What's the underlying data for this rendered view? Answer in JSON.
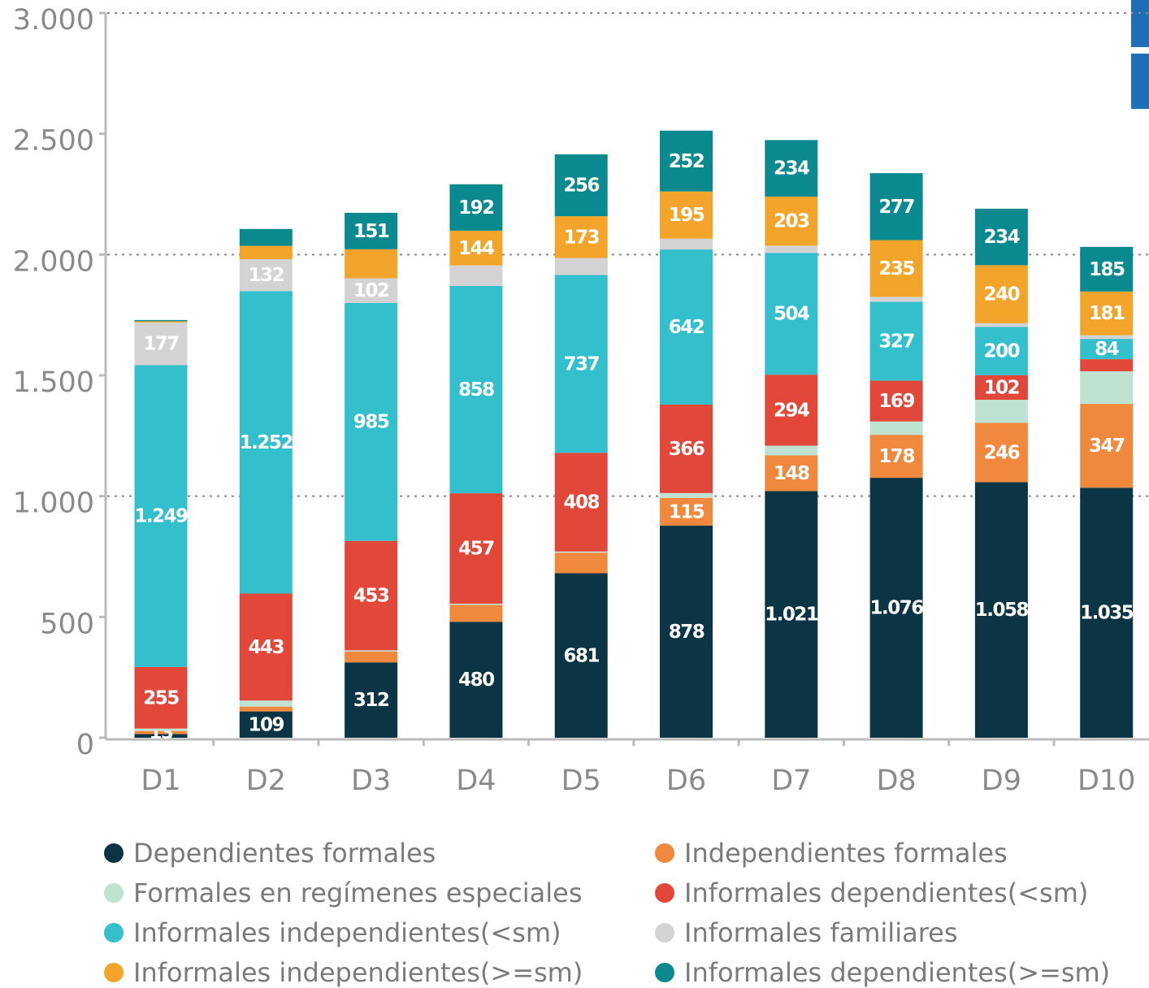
{
  "chart_data": {
    "type": "stacked_bar",
    "categories": [
      "D1",
      "D2",
      "D3",
      "D4",
      "D5",
      "D6",
      "D7",
      "D8",
      "D9",
      "D10"
    ],
    "ylim": [
      0,
      3000
    ],
    "yticks": [
      0,
      500,
      {
        "value": 1000,
        "label": "1.000"
      },
      {
        "value": 1500,
        "label": "1.500"
      },
      {
        "value": 2000,
        "label": "2.000"
      },
      {
        "value": 2500,
        "label": "2.500"
      },
      {
        "value": 3000,
        "label": "3.000"
      }
    ],
    "gridlines": [
      1000,
      2000,
      3000
    ],
    "series": [
      {
        "name": "Dependientes formales",
        "color": "#0b3545",
        "values": [
          15,
          109,
          312,
          480,
          681,
          878,
          1021,
          1076,
          1058,
          1035
        ],
        "value_labels": [
          null,
          "109",
          "312",
          "480",
          "681",
          "878",
          "1.021",
          "1.076",
          "1.058",
          "1.035"
        ]
      },
      {
        "name": "Independientes formales",
        "color": "#f0883e",
        "values": [
          13,
          20,
          45,
          70,
          85,
          115,
          148,
          178,
          246,
          347
        ],
        "value_labels": [
          "13",
          null,
          null,
          null,
          null,
          "115",
          "148",
          "178",
          "246",
          "347"
        ]
      },
      {
        "name": "Formales en regímenes especiales",
        "color": "#bfe3d3",
        "values": [
          10,
          25,
          5,
          5,
          5,
          20,
          40,
          55,
          95,
          135
        ],
        "value_labels": [
          null,
          null,
          null,
          null,
          null,
          null,
          null,
          null,
          null,
          null
        ]
      },
      {
        "name": "Informales dependientes(<sm)",
        "color": "#e2483a",
        "values": [
          255,
          443,
          453,
          457,
          408,
          366,
          294,
          169,
          102,
          50
        ],
        "value_labels": [
          "255",
          "443",
          "453",
          "457",
          "408",
          "366",
          "294",
          "169",
          "102",
          null
        ]
      },
      {
        "name": "Informales independientes(<sm)",
        "color": "#33bfcc",
        "values": [
          1249,
          1252,
          985,
          858,
          737,
          642,
          504,
          327,
          200,
          84
        ],
        "value_labels": [
          "1.249",
          "1.252",
          "985",
          "858",
          "737",
          "642",
          "504",
          "327",
          "200",
          "84"
        ]
      },
      {
        "name": "Informales familiares",
        "color": "#d3d3d3",
        "values": [
          177,
          132,
          102,
          85,
          70,
          45,
          30,
          20,
          15,
          15
        ],
        "value_labels": [
          "177",
          "132",
          "102",
          null,
          null,
          null,
          null,
          null,
          null,
          null
        ]
      },
      {
        "name": "Informales independientes(>=sm)",
        "color": "#f2a52a",
        "values": [
          5,
          55,
          120,
          144,
          173,
          195,
          203,
          235,
          240,
          181
        ],
        "value_labels": [
          null,
          null,
          null,
          "144",
          "173",
          "195",
          "203",
          "235",
          "240",
          "181"
        ]
      },
      {
        "name": "Informales dependientes(>=sm)",
        "color": "#0a8a8f",
        "values": [
          5,
          70,
          151,
          192,
          256,
          252,
          234,
          277,
          234,
          185
        ],
        "value_labels": [
          null,
          null,
          "151",
          "192",
          "256",
          "252",
          "234",
          "277",
          "234",
          "185"
        ]
      }
    ]
  }
}
